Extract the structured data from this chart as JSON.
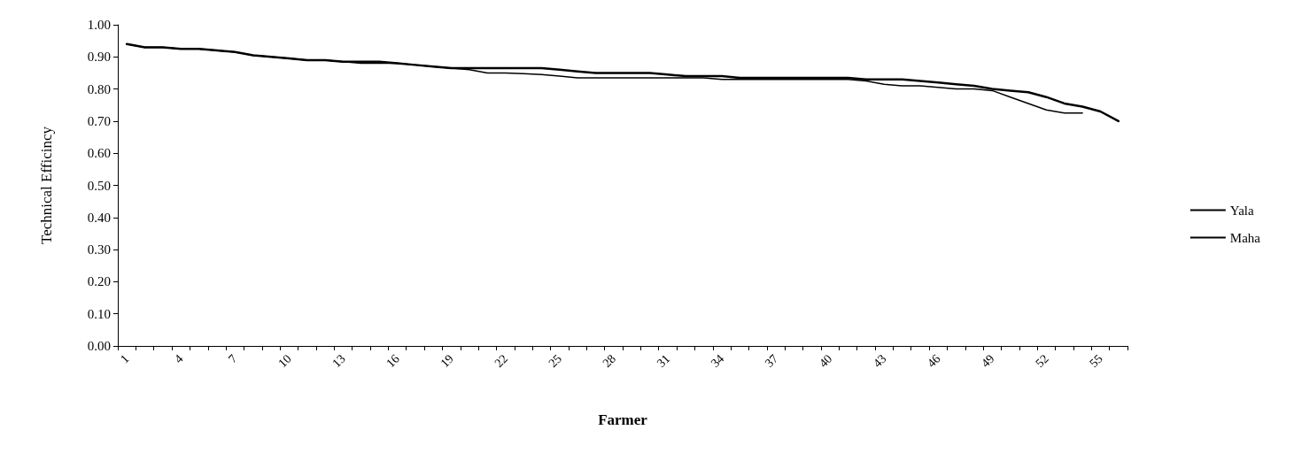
{
  "chart_data": {
    "type": "line",
    "xlabel": "Farmer",
    "ylabel": "Technical Efficincy",
    "categories": [
      "1",
      null,
      null,
      "4",
      null,
      null,
      "7",
      null,
      null,
      "10",
      null,
      null,
      "13",
      null,
      null,
      "16",
      null,
      null,
      "19",
      null,
      null,
      "22",
      null,
      null,
      "25",
      null,
      null,
      "28",
      null,
      null,
      "31",
      null,
      null,
      "34",
      null,
      null,
      "37",
      null,
      null,
      "40",
      null,
      null,
      "43",
      null,
      null,
      "46",
      null,
      null,
      "49",
      null,
      null,
      "52",
      null,
      null,
      "55",
      null
    ],
    "series": [
      {
        "name": "Yala",
        "color": "#000000",
        "values": [
          0.94,
          0.93,
          0.93,
          0.925,
          0.925,
          0.92,
          0.915,
          0.905,
          0.9,
          0.895,
          0.89,
          0.89,
          0.885,
          0.885,
          0.885,
          0.88,
          0.875,
          0.87,
          0.865,
          0.865,
          0.865,
          0.865,
          0.865,
          0.865,
          0.86,
          0.855,
          0.85,
          0.85,
          0.85,
          0.85,
          0.845,
          0.84,
          0.84,
          0.84,
          0.835,
          0.835,
          0.835,
          0.835,
          0.835,
          0.835,
          0.835,
          0.83,
          0.83,
          0.83,
          0.825,
          0.82,
          0.815,
          0.81,
          0.8,
          0.795,
          0.79,
          0.775,
          0.755,
          0.745,
          0.73,
          0.7
        ]
      },
      {
        "name": "Maha",
        "color": "#000000",
        "values": [
          0.94,
          0.93,
          0.93,
          0.925,
          0.925,
          0.92,
          0.915,
          0.905,
          0.9,
          0.895,
          0.89,
          0.89,
          0.885,
          0.88,
          0.88,
          0.88,
          0.875,
          0.87,
          0.865,
          0.86,
          0.85,
          0.85,
          0.848,
          0.845,
          0.84,
          0.835,
          0.835,
          0.835,
          0.835,
          0.835,
          0.835,
          0.835,
          0.835,
          0.83,
          0.83,
          0.83,
          0.83,
          0.83,
          0.83,
          0.83,
          0.83,
          0.825,
          0.815,
          0.81,
          0.81,
          0.805,
          0.8,
          0.8,
          0.795,
          0.775,
          0.755,
          0.735,
          0.725,
          0.725,
          null,
          null
        ]
      }
    ],
    "ylim": [
      0,
      1
    ],
    "yticks": [
      {
        "value": 0,
        "label": "0.00"
      },
      {
        "value": 0.1,
        "label": "0.10"
      },
      {
        "value": 0.2,
        "label": "0.20"
      },
      {
        "value": 0.3,
        "label": "0.30"
      },
      {
        "value": 0.4,
        "label": "0.40"
      },
      {
        "value": 0.5,
        "label": "0.50"
      },
      {
        "value": 0.6,
        "label": "0.60"
      },
      {
        "value": 0.7,
        "label": "0.70"
      },
      {
        "value": 0.8,
        "label": "0.80"
      },
      {
        "value": 0.9,
        "label": "0.90"
      },
      {
        "value": 1,
        "label": "1.00"
      }
    ],
    "grid": false,
    "legend": "right",
    "marker": "none",
    "line_style": "solid"
  }
}
